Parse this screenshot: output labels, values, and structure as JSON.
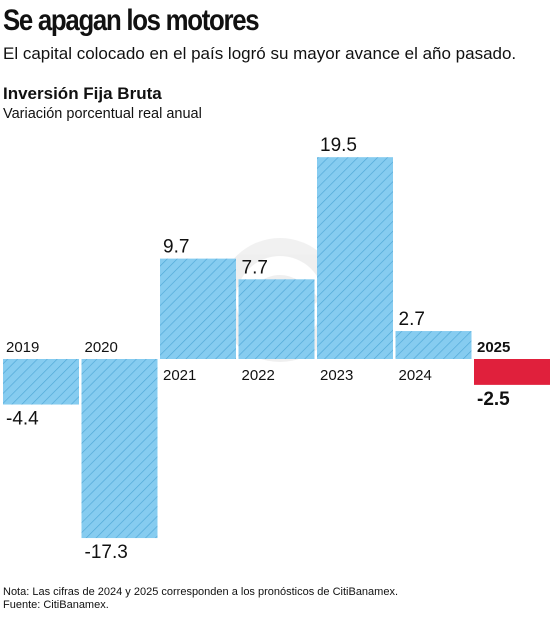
{
  "header": {
    "title": "Se apagan los motores",
    "subtitle": "El capital colocado en el país logró su mayor avance el año pasado."
  },
  "chart_data": {
    "type": "bar",
    "title": "Inversión Fija Bruta",
    "subtitle": "Variación porcentual real anual",
    "categories": [
      "2019",
      "2020",
      "2021",
      "2022",
      "2023",
      "2024",
      "2025"
    ],
    "values": [
      -4.4,
      -17.3,
      9.7,
      7.7,
      19.5,
      2.7,
      -2.5
    ],
    "value_labels": [
      "-4.4",
      "-17.3",
      "9.7",
      "7.7",
      "19.5",
      "2.7",
      "-2.5"
    ],
    "highlight_category": "2025",
    "colors": {
      "default": "#86ccf0",
      "hatch": "#4fa7d6",
      "highlight": "#e0203c"
    },
    "grid": false,
    "legend": "none"
  },
  "footer": {
    "note": "Nota: Las cifras de 2024 y 2025 corresponden a los pronósticos de CitiBanamex.",
    "source": "Fuente: CitiBanamex."
  }
}
